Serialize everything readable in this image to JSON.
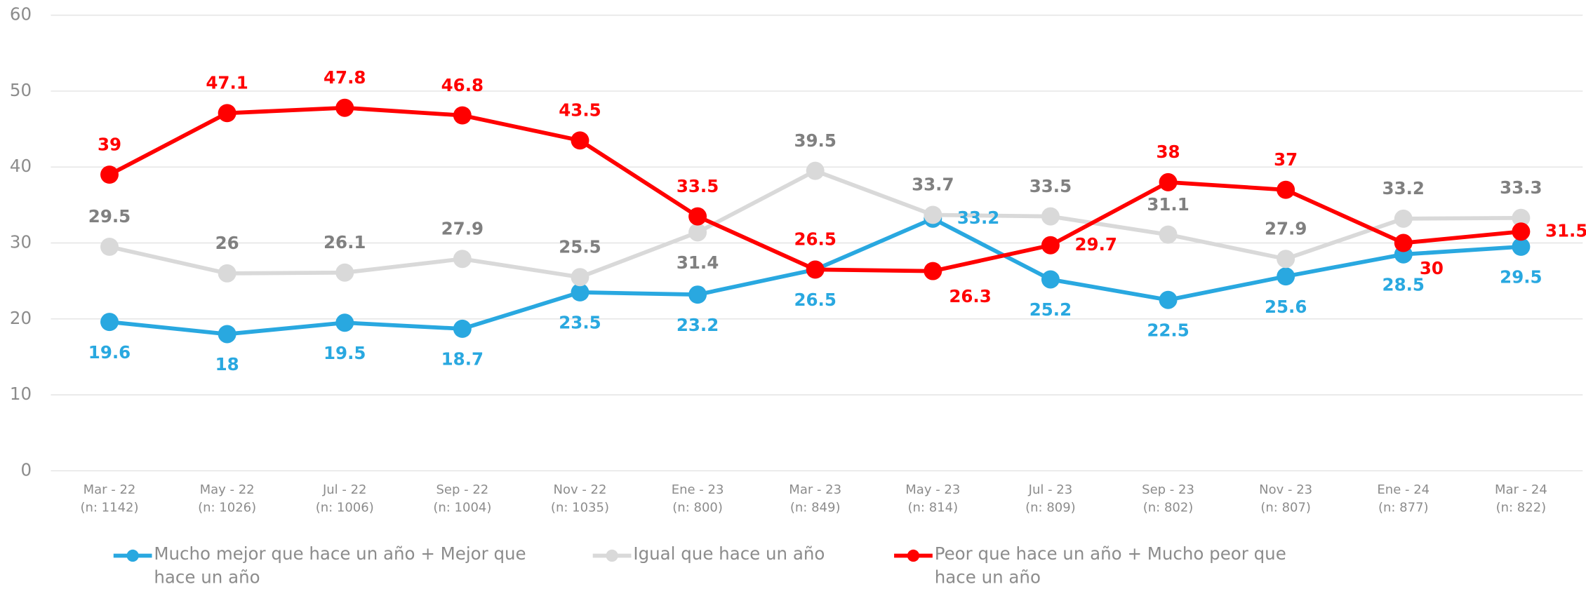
{
  "chart_data": {
    "type": "line",
    "categories": [
      "Mar - 22",
      "May - 22",
      "Jul - 22",
      "Sep - 22",
      "Nov - 22",
      "Ene - 23",
      "Mar - 23",
      "May - 23",
      "Jul - 23",
      "Sep - 23",
      "Nov - 23",
      "Ene - 24",
      "Mar - 24"
    ],
    "category_notes": [
      "(n: 1142)",
      "(n: 1026)",
      "(n: 1006)",
      "(n: 1004)",
      "(n: 1035)",
      "(n: 800)",
      "(n: 849)",
      "(n: 814)",
      "(n: 809)",
      "(n: 802)",
      "(n: 807)",
      "(n: 877)",
      "(n: 822)"
    ],
    "series": [
      {
        "name": "Mucho mejor que hace un año + Mejor que hace un año",
        "color": "#29a8e0",
        "values": [
          19.6,
          18,
          19.5,
          18.7,
          23.5,
          23.2,
          26.5,
          33.2,
          25.2,
          22.5,
          25.6,
          28.5,
          29.5
        ]
      },
      {
        "name": "Igual que hace un año",
        "color": "#d9d9d9",
        "label_color": "#808080",
        "values": [
          29.5,
          26,
          26.1,
          27.9,
          25.5,
          31.4,
          39.5,
          33.7,
          33.5,
          31.1,
          27.9,
          33.2,
          33.3
        ]
      },
      {
        "name": "Peor que hace un año + Mucho peor que hace un año",
        "color": "#ff0000",
        "values": [
          39,
          47.1,
          47.8,
          46.8,
          43.5,
          33.5,
          26.5,
          26.3,
          29.7,
          38,
          37,
          30,
          31.5
        ]
      }
    ],
    "ylim": [
      0,
      60
    ],
    "yticks": [
      0,
      10,
      20,
      30,
      40,
      50,
      60
    ],
    "grid": true,
    "legend": "bottom"
  }
}
